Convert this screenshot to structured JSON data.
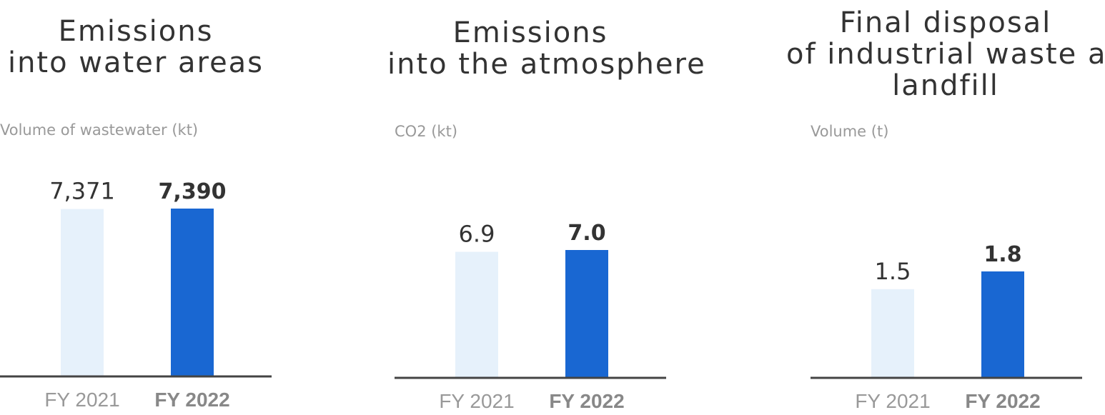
{
  "colors": {
    "prior_bar": "#e6f1fb",
    "current_bar": "#1967d2",
    "baseline": "#444444",
    "value_text": "#333333",
    "tick_text": "#999999",
    "tick_text_current": "#888888"
  },
  "chart_data": [
    {
      "type": "bar",
      "title_lines": [
        "Emissions",
        "into water areas"
      ],
      "ylabel": "Volume of wastewater (kt)",
      "categories": [
        "FY 2021",
        "FY 2022"
      ],
      "values": [
        7371,
        7390
      ],
      "value_labels": [
        "7,371",
        "7,390"
      ],
      "highlight": "FY 2022"
    },
    {
      "type": "bar",
      "title_lines": [
        "Emissions",
        "into the atmosphere"
      ],
      "ylabel": "CO2 (kt)",
      "categories": [
        "FY 2021",
        "FY 2022"
      ],
      "values": [
        6.9,
        7.0
      ],
      "value_labels": [
        "6.9",
        "7.0"
      ],
      "highlight": "FY 2022"
    },
    {
      "type": "bar",
      "title_lines": [
        "Final disposal",
        "of industrial waste at",
        "landfill"
      ],
      "ylabel": "Volume (t)",
      "categories": [
        "FY 2021",
        "FY 2022"
      ],
      "values": [
        1.5,
        1.8
      ],
      "value_labels": [
        "1.5",
        "1.8"
      ],
      "highlight": "FY 2022"
    }
  ]
}
